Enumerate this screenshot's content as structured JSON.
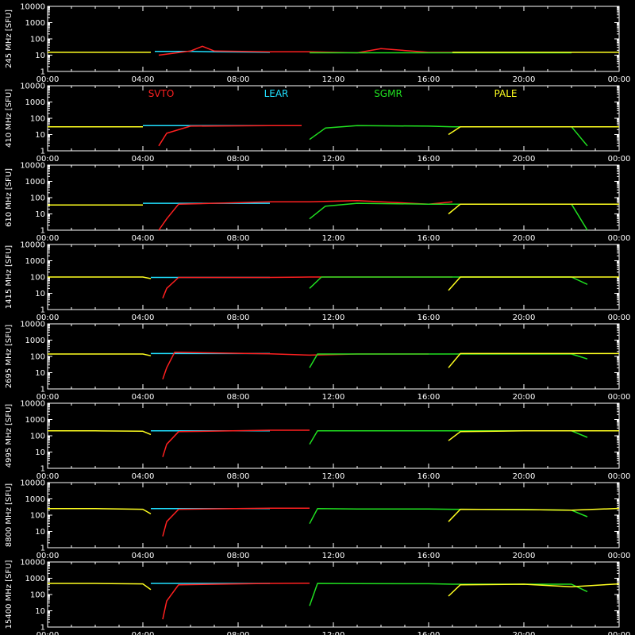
{
  "colors": {
    "background": "#000000",
    "axes": "#ffffff",
    "SVTO": "#ff2020",
    "LEAR": "#20e0ff",
    "SGMR": "#20e020",
    "PALE": "#ffff20"
  },
  "chart_data": {
    "type": "line",
    "grid": false,
    "y_scale": "log",
    "ylim": [
      1,
      10000
    ],
    "xlim": [
      "00:00",
      "24:00"
    ],
    "x_ticks": [
      "00:00",
      "04:00",
      "08:00",
      "12:00",
      "16:00",
      "20:00",
      "00:00"
    ],
    "y_ticks": [
      "1",
      "10",
      "100",
      "1000",
      "10000"
    ],
    "legend": [
      {
        "name": "SVTO",
        "color": "#ff2020"
      },
      {
        "name": "LEAR",
        "color": "#20e0ff"
      },
      {
        "name": "SGMR",
        "color": "#20e020"
      },
      {
        "name": "PALE",
        "color": "#ffff20"
      }
    ],
    "panels": [
      {
        "ylabel": "245 MHz [SFU]",
        "series": [
          {
            "name": "PALE",
            "x": [
              "00:00",
              "02:00",
              "04:20"
            ],
            "y": [
              15,
              15,
              15
            ]
          },
          {
            "name": "LEAR",
            "x": [
              "04:30",
              "06:00",
              "07:00",
              "09:20"
            ],
            "y": [
              17,
              17,
              16,
              15
            ]
          },
          {
            "name": "SVTO",
            "x": [
              "04:40",
              "06:00",
              "06:30",
              "07:00",
              "09:20",
              "11:00",
              "13:00",
              "14:00",
              "16:00",
              "17:00"
            ],
            "y": [
              10,
              18,
              35,
              18,
              16,
              16,
              14,
              25,
              15,
              15
            ]
          },
          {
            "name": "SGMR",
            "x": [
              "11:00",
              "13:00",
              "15:00",
              "17:00",
              "21:00",
              "22:00"
            ],
            "y": [
              14,
              14,
              14,
              14,
              14,
              14
            ]
          },
          {
            "name": "PALE",
            "x": [
              "17:00",
              "20:00",
              "22:00",
              "24:00"
            ],
            "y": [
              15,
              15,
              15,
              15
            ]
          }
        ]
      },
      {
        "ylabel": "410 MHz [SFU]",
        "series": [
          {
            "name": "PALE",
            "x": [
              "00:00",
              "02:00",
              "04:00"
            ],
            "y": [
              30,
              30,
              30
            ]
          },
          {
            "name": "LEAR",
            "x": [
              "04:00",
              "06:00",
              "08:00",
              "09:20"
            ],
            "y": [
              35,
              35,
              35,
              35
            ]
          },
          {
            "name": "SVTO",
            "x": [
              "04:40",
              "05:00",
              "06:00",
              "09:20",
              "10:40"
            ],
            "y": [
              2,
              12,
              33,
              35,
              35
            ]
          },
          {
            "name": "SGMR",
            "x": [
              "11:00",
              "11:40",
              "13:00",
              "16:00",
              "17:00",
              "20:00",
              "22:00",
              "22:40"
            ],
            "y": [
              5,
              25,
              35,
              33,
              30,
              30,
              30,
              2
            ]
          },
          {
            "name": "PALE",
            "x": [
              "16:50",
              "17:20",
              "20:00",
              "24:00"
            ],
            "y": [
              10,
              30,
              30,
              30
            ]
          }
        ]
      },
      {
        "ylabel": "610 MHz [SFU]",
        "series": [
          {
            "name": "PALE",
            "x": [
              "00:00",
              "02:00",
              "04:00"
            ],
            "y": [
              35,
              35,
              35
            ]
          },
          {
            "name": "LEAR",
            "x": [
              "04:00",
              "06:00",
              "09:20"
            ],
            "y": [
              45,
              45,
              45
            ]
          },
          {
            "name": "SVTO",
            "x": [
              "04:40",
              "05:00",
              "05:30",
              "09:20",
              "11:00",
              "13:00",
              "16:00",
              "17:00"
            ],
            "y": [
              1,
              5,
              40,
              55,
              55,
              65,
              40,
              55
            ]
          },
          {
            "name": "SGMR",
            "x": [
              "11:00",
              "11:40",
              "13:00",
              "16:00",
              "17:00",
              "20:00",
              "22:00",
              "22:40"
            ],
            "y": [
              5,
              30,
              45,
              40,
              40,
              40,
              40,
              1
            ]
          },
          {
            "name": "PALE",
            "x": [
              "16:50",
              "17:20",
              "20:00",
              "24:00"
            ],
            "y": [
              10,
              40,
              40,
              40
            ]
          }
        ]
      },
      {
        "ylabel": "1415 MHz [SFU]",
        "series": [
          {
            "name": "PALE",
            "x": [
              "00:00",
              "02:00",
              "04:00",
              "04:20"
            ],
            "y": [
              100,
              100,
              100,
              80
            ]
          },
          {
            "name": "LEAR",
            "x": [
              "04:20",
              "06:00",
              "09:20"
            ],
            "y": [
              95,
              95,
              95
            ]
          },
          {
            "name": "SVTO",
            "x": [
              "04:50",
              "05:00",
              "05:30",
              "09:20",
              "11:00",
              "16:00",
              "17:00"
            ],
            "y": [
              5,
              20,
              95,
              95,
              100,
              100,
              100
            ]
          },
          {
            "name": "SGMR",
            "x": [
              "11:00",
              "11:30",
              "13:00",
              "16:00",
              "17:00",
              "20:00",
              "22:00",
              "22:40"
            ],
            "y": [
              20,
              100,
              100,
              100,
              100,
              100,
              100,
              35
            ]
          },
          {
            "name": "PALE",
            "x": [
              "16:50",
              "17:20",
              "20:00",
              "24:00"
            ],
            "y": [
              15,
              100,
              100,
              100
            ]
          }
        ]
      },
      {
        "ylabel": "2695 MHz [SFU]",
        "series": [
          {
            "name": "PALE",
            "x": [
              "00:00",
              "02:00",
              "04:00",
              "04:20"
            ],
            "y": [
              140,
              140,
              140,
              110
            ]
          },
          {
            "name": "LEAR",
            "x": [
              "04:20",
              "06:00",
              "09:20"
            ],
            "y": [
              150,
              150,
              150
            ]
          },
          {
            "name": "SVTO",
            "x": [
              "04:50",
              "05:00",
              "05:20",
              "09:20",
              "11:00",
              "13:00",
              "16:00"
            ],
            "y": [
              4,
              20,
              180,
              145,
              120,
              140,
              140
            ]
          },
          {
            "name": "SGMR",
            "x": [
              "11:00",
              "11:20",
              "13:00",
              "16:00",
              "17:00",
              "20:00",
              "22:00",
              "22:40"
            ],
            "y": [
              20,
              140,
              140,
              140,
              140,
              140,
              140,
              70
            ]
          },
          {
            "name": "PALE",
            "x": [
              "16:50",
              "17:20",
              "20:00",
              "24:00"
            ],
            "y": [
              20,
              150,
              150,
              150
            ]
          }
        ]
      },
      {
        "ylabel": "4995 MHz [SFU]",
        "series": [
          {
            "name": "PALE",
            "x": [
              "00:00",
              "02:00",
              "04:00",
              "04:20"
            ],
            "y": [
              200,
              200,
              190,
              120
            ]
          },
          {
            "name": "LEAR",
            "x": [
              "04:20",
              "06:00",
              "09:20"
            ],
            "y": [
              200,
              200,
              200
            ]
          },
          {
            "name": "SVTO",
            "x": [
              "04:50",
              "05:00",
              "05:30",
              "09:20",
              "11:00"
            ],
            "y": [
              5,
              30,
              180,
              220,
              220
            ]
          },
          {
            "name": "SGMR",
            "x": [
              "11:00",
              "11:20",
              "13:00",
              "16:00",
              "17:00",
              "20:00",
              "22:00",
              "22:40"
            ],
            "y": [
              30,
              200,
              200,
              200,
              200,
              200,
              200,
              80
            ]
          },
          {
            "name": "PALE",
            "x": [
              "16:50",
              "17:20",
              "20:00",
              "24:00"
            ],
            "y": [
              50,
              180,
              200,
              200
            ]
          }
        ]
      },
      {
        "ylabel": "8800 MHz [SFU]",
        "series": [
          {
            "name": "PALE",
            "x": [
              "00:00",
              "02:00",
              "04:00",
              "04:20"
            ],
            "y": [
              250,
              250,
              230,
              120
            ]
          },
          {
            "name": "LEAR",
            "x": [
              "04:20",
              "06:00",
              "09:20"
            ],
            "y": [
              250,
              250,
              250
            ]
          },
          {
            "name": "SVTO",
            "x": [
              "04:50",
              "05:00",
              "05:30",
              "09:20",
              "11:00"
            ],
            "y": [
              5,
              40,
              230,
              270,
              270
            ]
          },
          {
            "name": "SGMR",
            "x": [
              "11:00",
              "11:20",
              "13:00",
              "16:00",
              "17:00",
              "20:00",
              "22:00",
              "22:40"
            ],
            "y": [
              30,
              250,
              240,
              240,
              230,
              220,
              200,
              80
            ]
          },
          {
            "name": "PALE",
            "x": [
              "16:50",
              "17:20",
              "20:00",
              "22:00",
              "24:00"
            ],
            "y": [
              40,
              230,
              220,
              200,
              260
            ]
          }
        ]
      },
      {
        "ylabel": "15400 MHz [SFU]",
        "series": [
          {
            "name": "PALE",
            "x": [
              "00:00",
              "02:00",
              "04:00",
              "04:20"
            ],
            "y": [
              480,
              480,
              450,
              200
            ]
          },
          {
            "name": "LEAR",
            "x": [
              "04:20",
              "06:00",
              "09:20"
            ],
            "y": [
              480,
              480,
              480
            ]
          },
          {
            "name": "SVTO",
            "x": [
              "04:50",
              "05:00",
              "05:30",
              "09:20",
              "11:00"
            ],
            "y": [
              3,
              40,
              400,
              480,
              500
            ]
          },
          {
            "name": "SGMR",
            "x": [
              "11:00",
              "11:20",
              "13:00",
              "16:00",
              "17:00",
              "20:00",
              "22:00",
              "22:40"
            ],
            "y": [
              20,
              480,
              470,
              460,
              430,
              430,
              430,
              150
            ]
          },
          {
            "name": "PALE",
            "x": [
              "16:50",
              "17:20",
              "20:00",
              "22:00",
              "24:00"
            ],
            "y": [
              80,
              400,
              430,
              300,
              450
            ]
          }
        ]
      }
    ]
  }
}
